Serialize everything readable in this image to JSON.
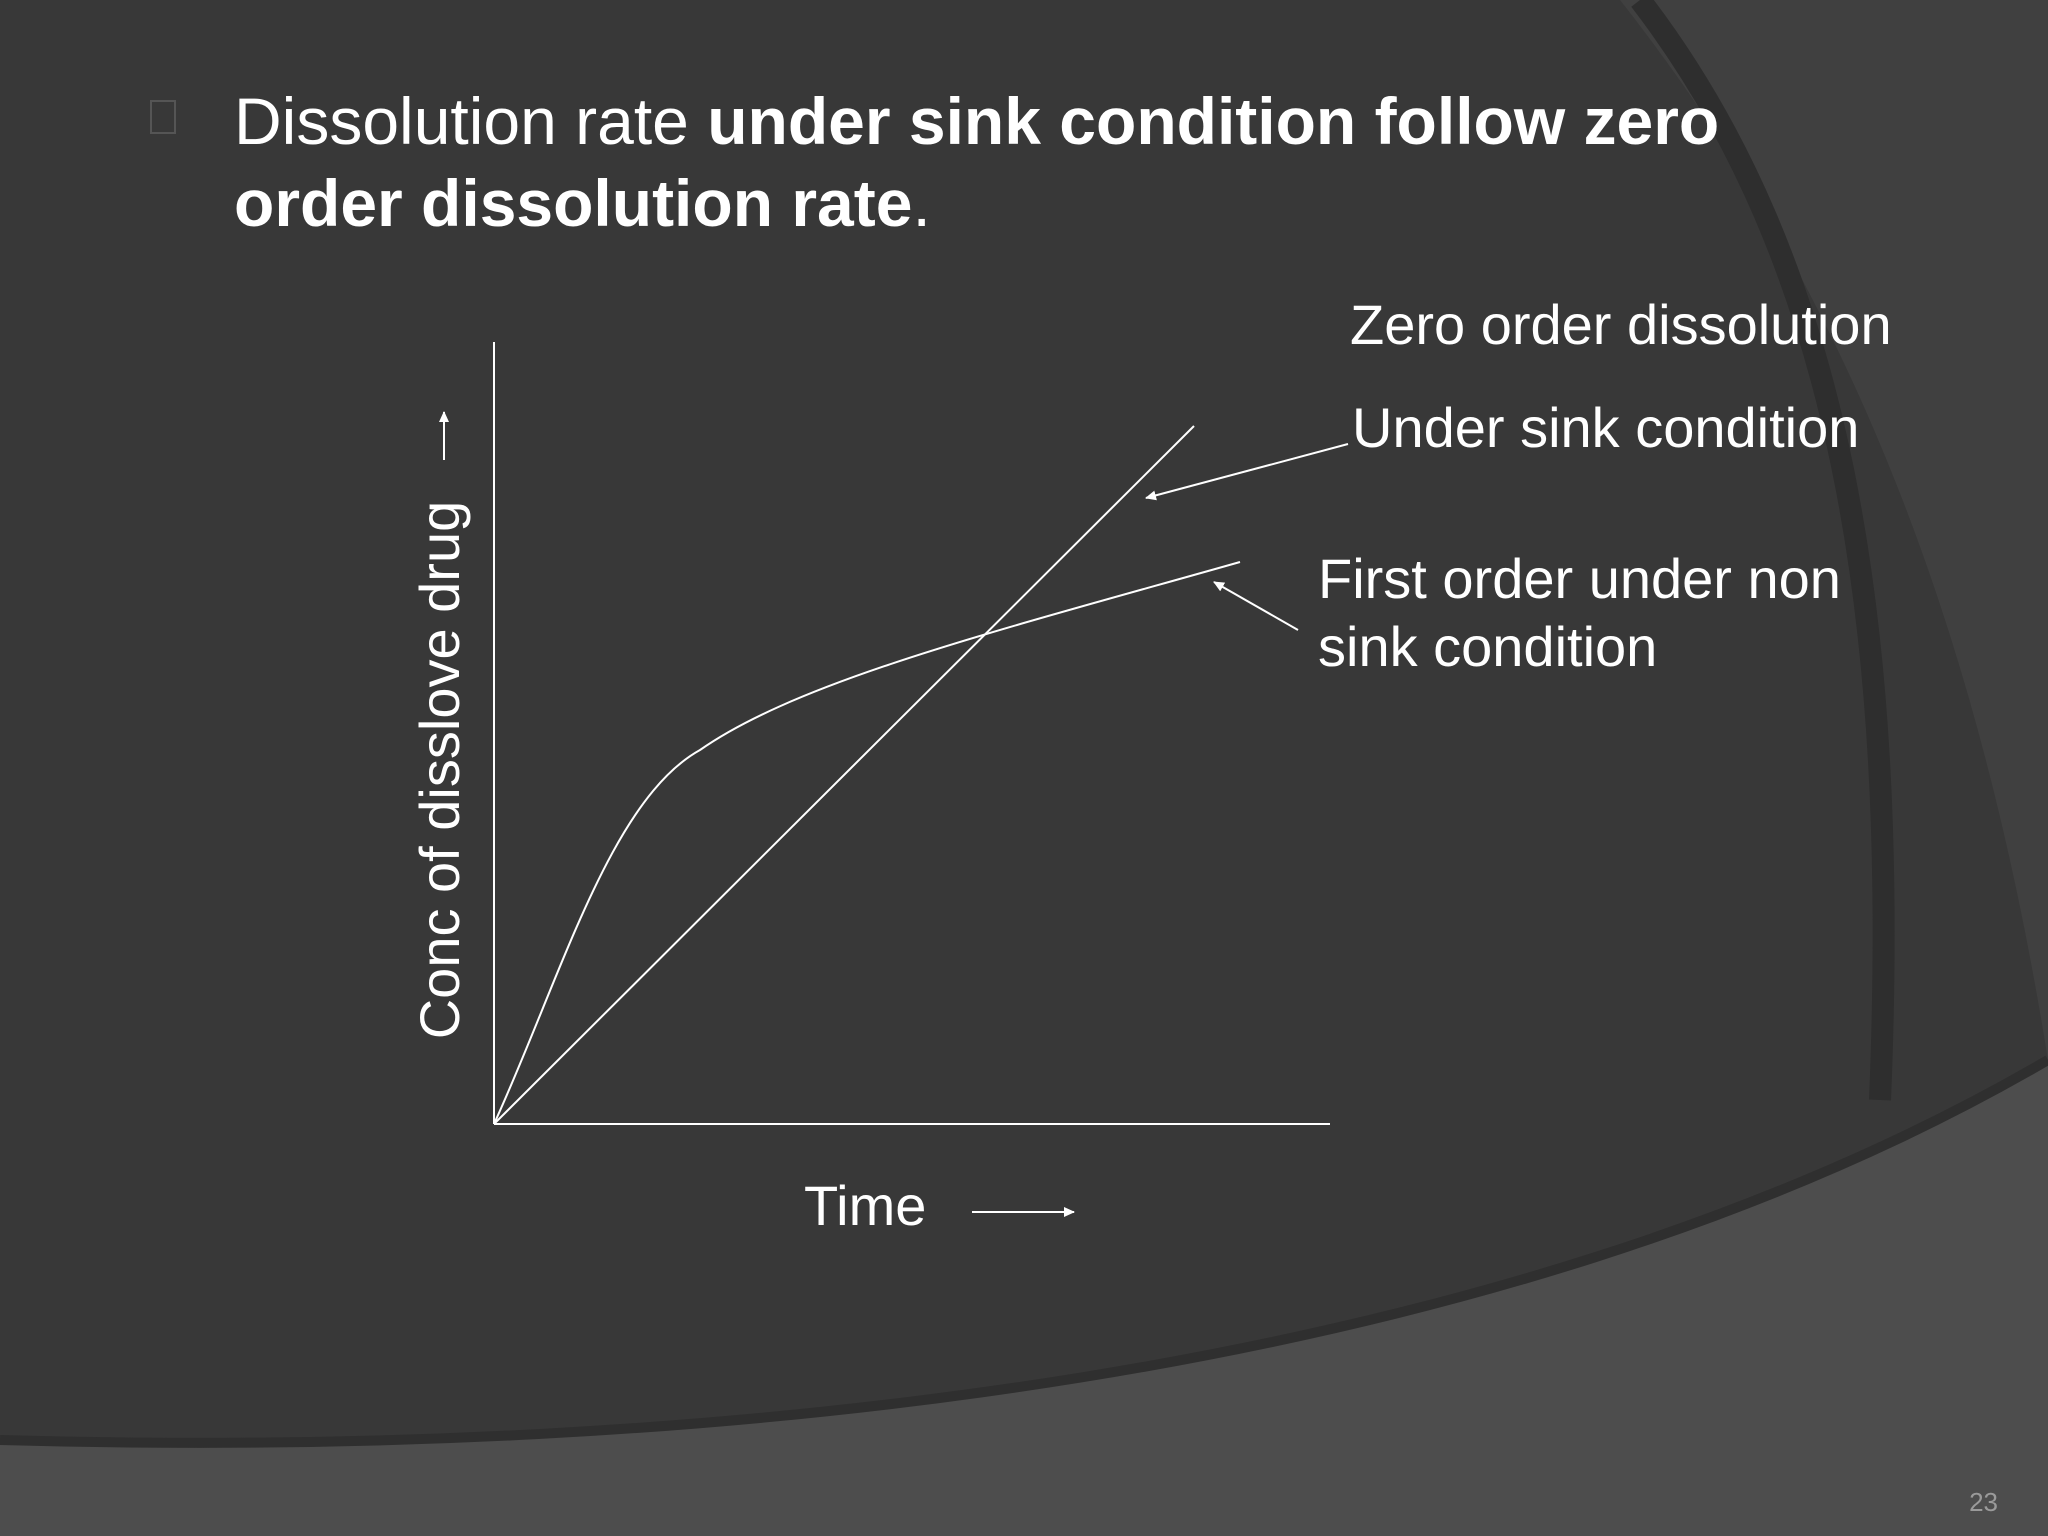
{
  "slide": {
    "bullet": {
      "text_normal": "Dissolution rate ",
      "text_bold_1": "under sink condition follow zero order dissolution rate",
      "text_end": "."
    },
    "diagram": {
      "y_axis_label": "Conc of disslove drug",
      "x_axis_label": "Time",
      "labels": {
        "zero_order_title": "Zero order dissolution",
        "under_sink": "Under sink condition",
        "first_order_line1": "First order under non",
        "first_order_line2": "sink condition"
      }
    },
    "page_number": "23"
  },
  "colors": {
    "background": "#3a3a3a",
    "foreground": "#ffffff",
    "band": "#505050"
  }
}
